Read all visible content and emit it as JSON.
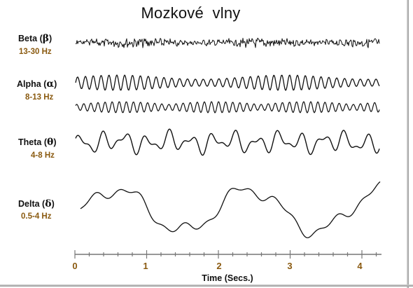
{
  "title": "Mozkové  vlny",
  "bands": [
    {
      "name": "Beta",
      "symbol": "β",
      "range": "13-30 Hz"
    },
    {
      "name": "Alpha",
      "symbol": "α",
      "range": "8-13 Hz"
    },
    {
      "name": "Theta",
      "symbol": "θ",
      "range": "4-8 Hz"
    },
    {
      "name": "Delta",
      "symbol": "δ",
      "range": "0.5-4 Hz"
    }
  ],
  "axis": {
    "title": "Time (Secs.)",
    "ticks": [
      "0",
      "1",
      "2",
      "3",
      "4"
    ]
  },
  "colors": {
    "wave": "#111111",
    "frequency_text": "#8a5a10",
    "axis_labels": "#8a5a10"
  }
}
